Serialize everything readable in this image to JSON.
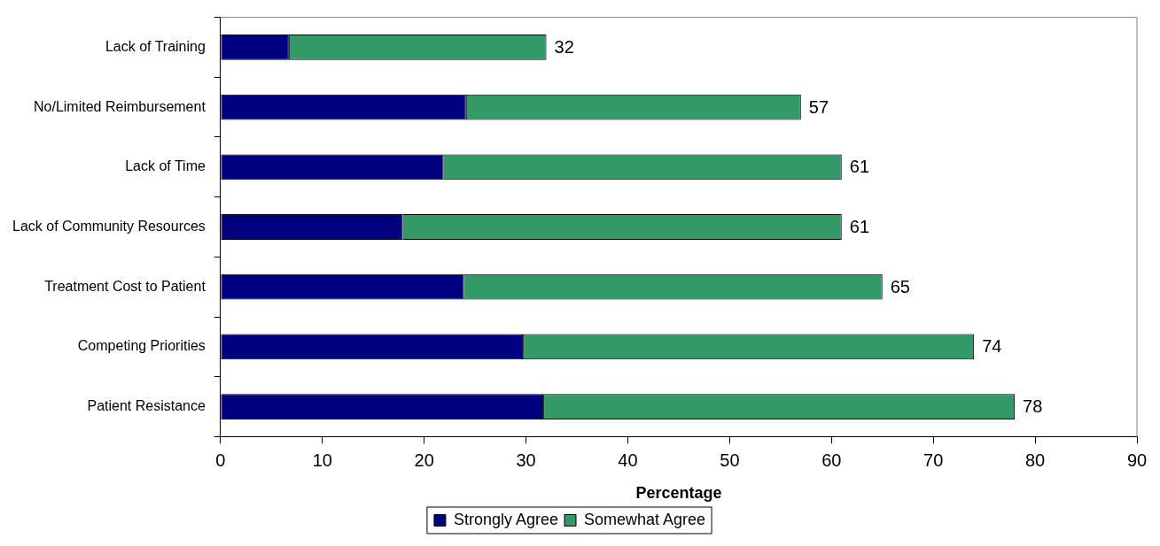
{
  "chart_data": {
    "type": "bar",
    "orientation": "horizontal",
    "stacked": true,
    "categories": [
      "Lack of Training",
      "No/Limited Reimbursement",
      "Lack of Time",
      "Lack of Community Resources",
      "Treatment Cost to Patient",
      "Competing Priorities",
      "Patient Resistance"
    ],
    "series": [
      {
        "name": "Strongly Agree",
        "color": "#000080",
        "values": [
          6.7,
          24.1,
          21.9,
          17.9,
          23.9,
          29.7,
          31.7
        ]
      },
      {
        "name": "Somewhat Agree",
        "color": "#339966",
        "values": [
          25.3,
          32.9,
          39.1,
          43.1,
          41.1,
          44.3,
          46.3
        ]
      }
    ],
    "totals": [
      "32",
      "57",
      "61",
      "61",
      "65",
      "74",
      "78"
    ],
    "xlabel": "Percentage",
    "xlim": [
      0,
      90
    ],
    "xticks": [
      0,
      10,
      20,
      30,
      40,
      50,
      60,
      70,
      80,
      90
    ],
    "grid": false,
    "legend": "bottom"
  }
}
